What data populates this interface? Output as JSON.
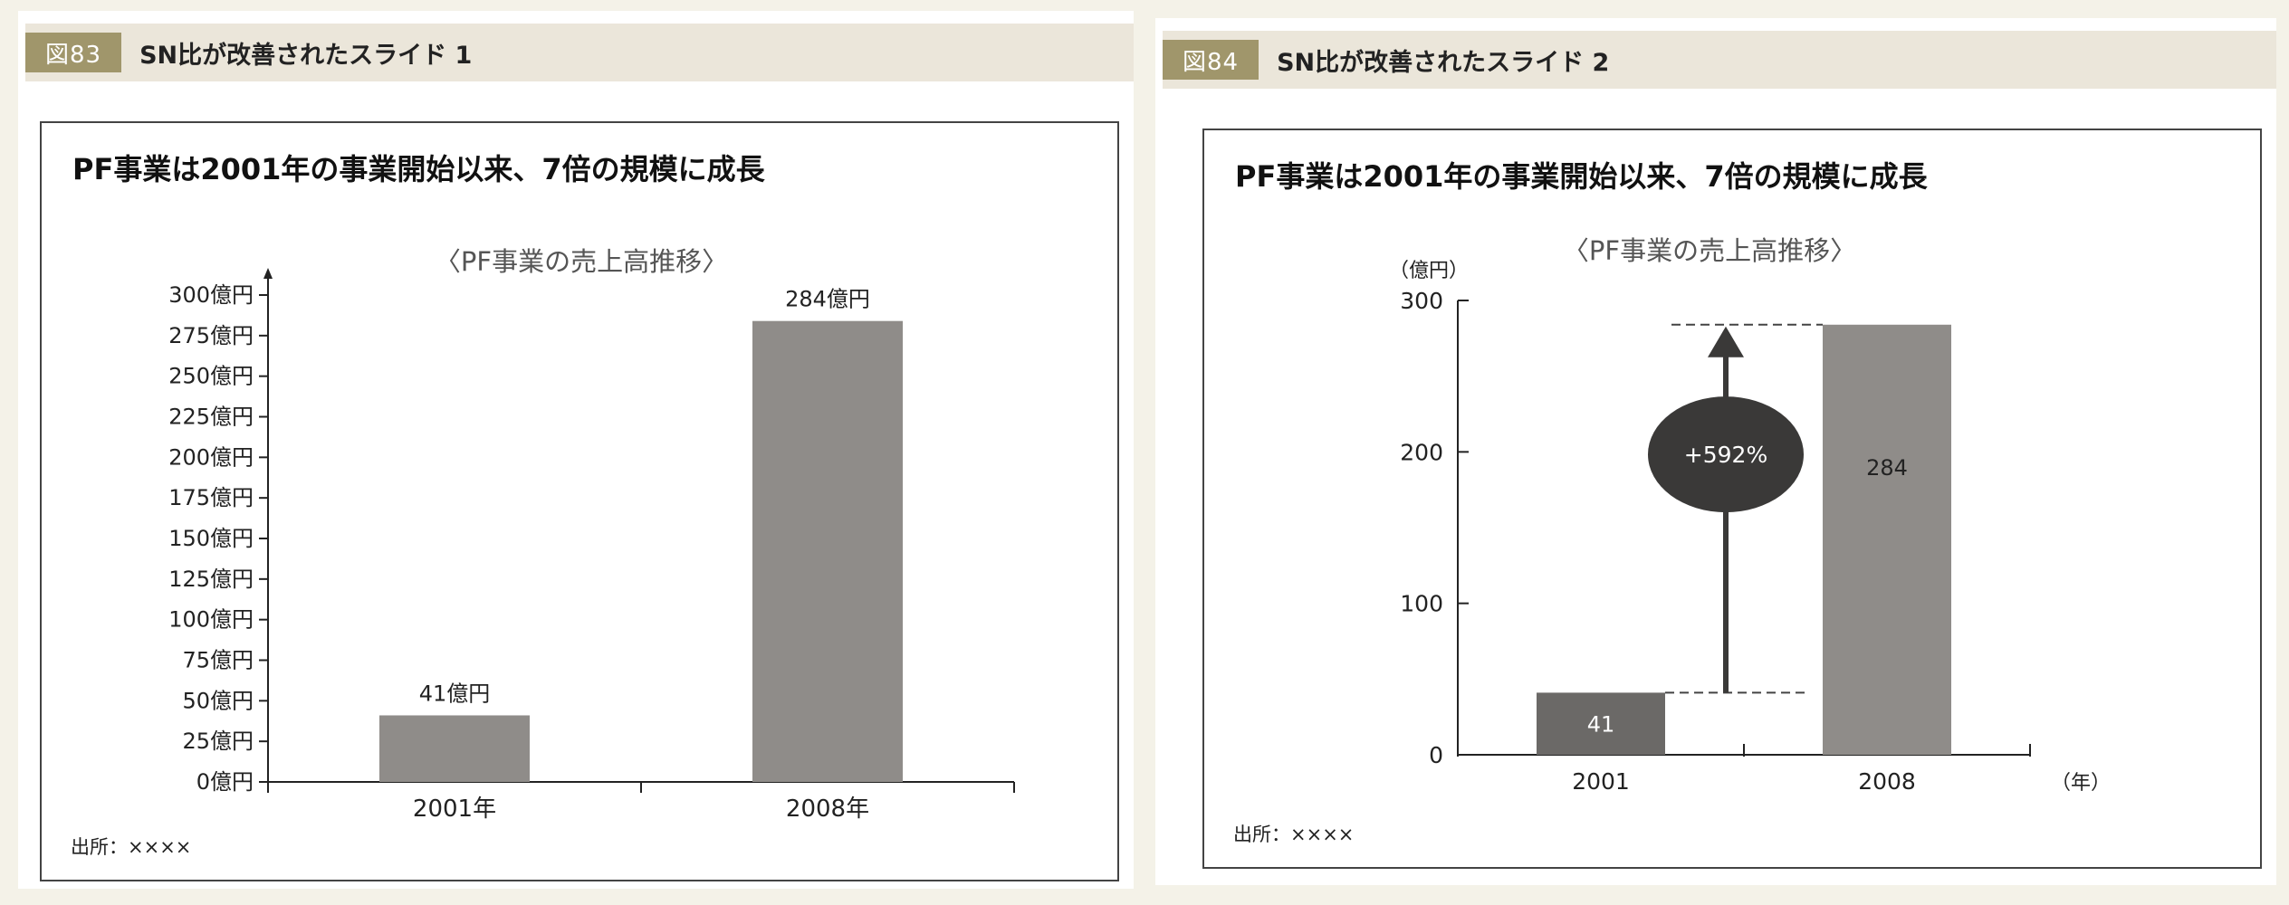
{
  "panels": [
    {
      "figure_label": "図83",
      "figure_title": "SN比が改善されたスライド 1",
      "slide_title": "PF事業は2001年の事業開始以来、7倍の規模に成長",
      "chart_title": "〈PF事業の売上高推移〉",
      "source": "出所：××××"
    },
    {
      "figure_label": "図84",
      "figure_title": "SN比が改善されたスライド 2",
      "slide_title": "PF事業は2001年の事業開始以来、7倍の規模に成長",
      "chart_title": "〈PF事業の売上高推移〉",
      "source": "出所：××××"
    }
  ],
  "chart_data": [
    {
      "type": "bar",
      "categories": [
        "2001年",
        "2008年"
      ],
      "values": [
        41,
        284
      ],
      "data_labels": [
        "41億円",
        "284億円"
      ],
      "yticks": [
        0,
        25,
        50,
        75,
        100,
        125,
        150,
        175,
        200,
        225,
        250,
        275,
        300
      ],
      "ytick_labels": [
        "0億円",
        "25億円",
        "50億円",
        "75億円",
        "100億円",
        "125億円",
        "150億円",
        "175億円",
        "200億円",
        "225億円",
        "250億円",
        "275億円",
        "300億円"
      ],
      "ylim": [
        0,
        300
      ],
      "bar_color": "#8f8c89"
    },
    {
      "type": "bar",
      "categories": [
        "2001",
        "2008"
      ],
      "values": [
        41,
        284
      ],
      "data_labels": [
        "41",
        "284"
      ],
      "yticks": [
        0,
        100,
        200,
        300
      ],
      "ytick_labels": [
        "0",
        "100",
        "200",
        "300"
      ],
      "ylim": [
        0,
        300
      ],
      "ylabel": "（億円）",
      "xlabel": "（年）",
      "annotation": "+592%",
      "bar_colors": [
        "#6b6967",
        "#8f8c89"
      ],
      "annotation_color": "#3a3938"
    }
  ]
}
